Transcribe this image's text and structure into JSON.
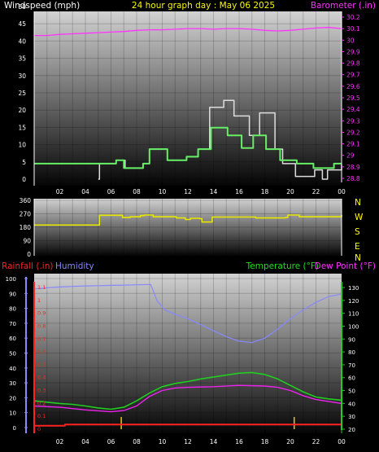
{
  "header": {
    "title": "24 hour graph day : May 06 2025",
    "title_color": "#ffff00",
    "left_label": "Windspeed (mph)",
    "left_color": "#ffffff",
    "right_label": "Barometer (.in)",
    "right_color": "#ff33ff"
  },
  "x_ticks": [
    "02",
    "04",
    "06",
    "08",
    "10",
    "12",
    "14",
    "16",
    "18",
    "20",
    "22",
    "00"
  ],
  "colors": {
    "wind_avg": "#66ee66",
    "wind_gust": "#dddddd",
    "baro": "#ff33ff",
    "wind_dir": "#e6e600",
    "temp": "#22cc22",
    "dew": "#ee22ee",
    "humidity": "#8888ff",
    "rain": "#ff2222",
    "rain_rate": "#e6c800"
  },
  "panel1": {
    "wind_ticks": [
      "0",
      "5",
      "10",
      "15",
      "20",
      "25",
      "30",
      "35",
      "40",
      "45",
      "50"
    ],
    "baro_ticks": [
      "28.8",
      "28.9",
      "29",
      "29.1",
      "29.2",
      "29.3",
      "29.4",
      "29.5",
      "29.6",
      "29.7",
      "29.8",
      "29.9",
      "30",
      "30.1",
      "30.2"
    ],
    "wind_avg": [
      [
        0,
        4.5
      ],
      [
        5.3,
        4.5
      ],
      [
        5.3,
        4.5
      ],
      [
        6.4,
        5.5
      ],
      [
        7,
        3.2
      ],
      [
        8.5,
        4.5
      ],
      [
        9,
        8.7
      ],
      [
        10.4,
        5.5
      ],
      [
        11.9,
        6.5
      ],
      [
        12.8,
        8.7
      ],
      [
        13.8,
        14.9
      ],
      [
        15.1,
        12.7
      ],
      [
        16.2,
        9
      ],
      [
        17.1,
        12.7
      ],
      [
        18.1,
        8.7
      ],
      [
        19.2,
        5.5
      ],
      [
        20.5,
        4.5
      ],
      [
        21.8,
        3.2
      ],
      [
        23.4,
        4.5
      ],
      [
        24,
        4.5
      ]
    ],
    "wind_gust": [
      [
        5,
        0
      ],
      [
        5.1,
        4.5
      ],
      [
        6.4,
        5.5
      ],
      [
        7.1,
        3.2
      ],
      [
        8.5,
        4.5
      ],
      [
        9,
        8.7
      ],
      [
        10.4,
        5.5
      ],
      [
        11.9,
        6.5
      ],
      [
        12.8,
        8.7
      ],
      [
        13.7,
        20.8
      ],
      [
        14.8,
        22.8
      ],
      [
        15.6,
        18.3
      ],
      [
        16.8,
        12.7
      ],
      [
        17.6,
        19.2
      ],
      [
        18.8,
        8.7
      ],
      [
        19.4,
        4.5
      ],
      [
        20.4,
        0.8
      ],
      [
        21.9,
        2.7
      ],
      [
        22.5,
        0
      ],
      [
        22.9,
        2.7
      ],
      [
        23.4,
        2.7
      ],
      [
        24,
        4.2
      ]
    ],
    "barometer": [
      [
        0,
        30.04
      ],
      [
        1,
        30.04
      ],
      [
        2,
        30.05
      ],
      [
        3,
        30.055
      ],
      [
        4,
        30.06
      ],
      [
        5,
        30.065
      ],
      [
        6,
        30.07
      ],
      [
        7,
        30.075
      ],
      [
        8,
        30.085
      ],
      [
        9,
        30.09
      ],
      [
        10,
        30.09
      ],
      [
        11,
        30.095
      ],
      [
        12,
        30.1
      ],
      [
        13,
        30.1
      ],
      [
        14,
        30.095
      ],
      [
        15,
        30.1
      ],
      [
        16,
        30.1
      ],
      [
        17,
        30.095
      ],
      [
        18,
        30.085
      ],
      [
        19,
        30.08
      ],
      [
        20,
        30.085
      ],
      [
        21,
        30.095
      ],
      [
        22,
        30.105
      ],
      [
        23,
        30.11
      ],
      [
        24,
        30.1
      ]
    ]
  },
  "panel2": {
    "dir_ticks": [
      "0",
      "90",
      "180",
      "270",
      "360"
    ],
    "compass": [
      "N",
      "W",
      "S",
      "E",
      "N"
    ],
    "compass_color": "#ffff00",
    "wind_dir": [
      [
        0,
        195
      ],
      [
        5.1,
        195
      ],
      [
        5.1,
        260
      ],
      [
        6.4,
        260
      ],
      [
        6.9,
        245
      ],
      [
        7.5,
        250
      ],
      [
        8.3,
        258
      ],
      [
        8.6,
        262
      ],
      [
        9.3,
        250
      ],
      [
        11.1,
        242
      ],
      [
        11.8,
        232
      ],
      [
        12.2,
        240
      ],
      [
        12.9,
        238
      ],
      [
        13.1,
        215
      ],
      [
        13.8,
        215
      ],
      [
        13.9,
        248
      ],
      [
        17.1,
        248
      ],
      [
        17.3,
        242
      ],
      [
        19.6,
        245
      ],
      [
        19.8,
        262
      ],
      [
        20.7,
        250
      ],
      [
        23.8,
        250
      ],
      [
        24,
        262
      ]
    ]
  },
  "panel3": {
    "rain_label": "Rainfall (.in)",
    "humidity_label": "Humidity",
    "temp_label": "Temperature (°F)",
    "dew_label": "Dew Point (°F)",
    "humidity_ticks": [
      "0",
      "10",
      "20",
      "30",
      "40",
      "50",
      "60",
      "70",
      "80",
      "90",
      "100"
    ],
    "rain_ticks": [
      "0",
      "0.1",
      "0.2",
      "0.3",
      "0.4",
      "0.5",
      "0.6",
      "0.7",
      "0.8",
      "0.9",
      "1",
      "1.1"
    ],
    "temp_ticks": [
      "20",
      "30",
      "40",
      "50",
      "60",
      "70",
      "80",
      "90",
      "100",
      "110",
      "120",
      "130"
    ],
    "humidity": [
      [
        0,
        93
      ],
      [
        1,
        93.8
      ],
      [
        2,
        94.3
      ],
      [
        3,
        94.7
      ],
      [
        4,
        95
      ],
      [
        5,
        95.2
      ],
      [
        6,
        95.4
      ],
      [
        7,
        95.6
      ],
      [
        8,
        95.8
      ],
      [
        9.1,
        96
      ],
      [
        9.6,
        85
      ],
      [
        10.2,
        79
      ],
      [
        11,
        76
      ],
      [
        12,
        73
      ],
      [
        13,
        69
      ],
      [
        14,
        65
      ],
      [
        15,
        61
      ],
      [
        16,
        58
      ],
      [
        17,
        57
      ],
      [
        18,
        60
      ],
      [
        19,
        66
      ],
      [
        20,
        73
      ],
      [
        21,
        79
      ],
      [
        22,
        84
      ],
      [
        23,
        88
      ],
      [
        24,
        89.5
      ]
    ],
    "temp": [
      [
        0,
        42
      ],
      [
        2,
        40
      ],
      [
        3,
        39.3
      ],
      [
        4,
        38
      ],
      [
        5,
        36.5
      ],
      [
        6,
        35.5
      ],
      [
        7,
        37
      ],
      [
        8,
        42
      ],
      [
        9,
        48
      ],
      [
        10,
        53
      ],
      [
        11,
        55.5
      ],
      [
        12,
        57
      ],
      [
        13,
        59
      ],
      [
        14,
        60.5
      ],
      [
        15,
        62
      ],
      [
        16,
        63.5
      ],
      [
        17,
        64
      ],
      [
        18,
        62.5
      ],
      [
        19,
        59
      ],
      [
        20,
        54
      ],
      [
        21,
        49
      ],
      [
        22,
        45
      ],
      [
        23,
        43.5
      ],
      [
        24,
        42.5
      ]
    ],
    "dewpoint": [
      [
        0,
        38
      ],
      [
        2,
        37
      ],
      [
        4,
        35
      ],
      [
        6,
        33.5
      ],
      [
        7,
        34.5
      ],
      [
        8,
        38
      ],
      [
        9,
        45.5
      ],
      [
        10,
        50
      ],
      [
        11,
        52
      ],
      [
        12,
        52.5
      ],
      [
        14,
        53
      ],
      [
        16,
        54
      ],
      [
        18,
        53.5
      ],
      [
        19,
        52.5
      ],
      [
        20,
        50
      ],
      [
        21,
        46
      ],
      [
        22,
        43
      ],
      [
        24,
        40
      ]
    ],
    "rain_total": [
      [
        0,
        0.02
      ],
      [
        2,
        0.02
      ],
      [
        2.4,
        0.03
      ],
      [
        24,
        0.03
      ]
    ],
    "rain_rate_spikes": [
      6.8,
      20.3
    ]
  }
}
